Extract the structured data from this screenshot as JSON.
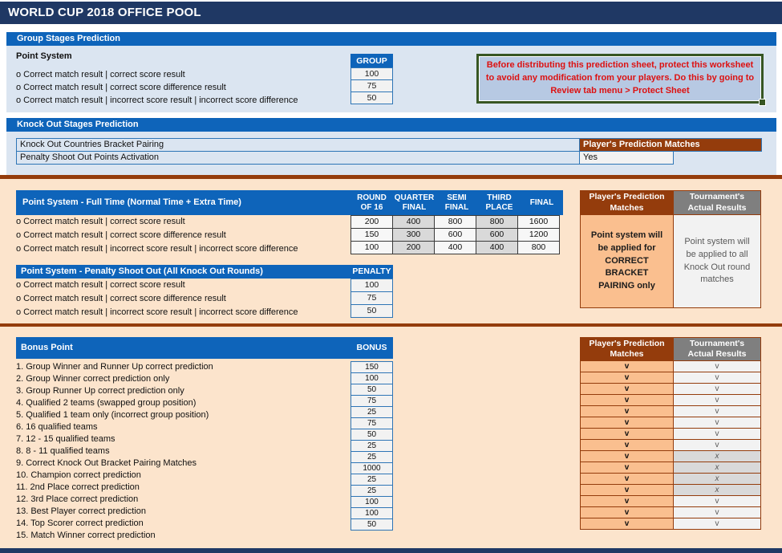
{
  "title": "WORLD CUP 2018 OFFICE POOL",
  "colors": {
    "navy": "#1F3864",
    "blue": "#0E64BA",
    "light_blue_bg": "#DBE5F1",
    "blue_border": "#2E75B6",
    "peach_bg": "#FCE4CC",
    "orange_cell": "#FABF8F",
    "brown": "#943C0C",
    "gray_header": "#7F7F7F",
    "cell_light": "#F2F2F2",
    "cell_gray": "#D9D9D9",
    "green_border": "#375623",
    "warning_bg": "#B7C9E3",
    "warning_red": "#DD1111",
    "gray_text": "#595959",
    "dark_border": "#3A3A3A"
  },
  "group_stages": {
    "bar_label": "Group Stages Prediction",
    "heading": "Point System",
    "column_header": "GROUP",
    "rows": [
      {
        "label": "o Correct match result | correct score result",
        "value": "100"
      },
      {
        "label": "o Correct match result | correct score difference result",
        "value": "75"
      },
      {
        "label": "o Correct match result | incorrect score result | incorrect score difference",
        "value": "50"
      }
    ],
    "warning": "Before distributing this prediction sheet, protect this worksheet to avoid any modification from your players. Do this by going to Review tab menu > Protect Sheet"
  },
  "knockout_stages": {
    "bar_label": "Knock Out Stages Prediction",
    "settings": [
      {
        "label": "Knock Out Countries Bracket Pairing",
        "value": "Player's Prediction Matches",
        "style": "brown"
      },
      {
        "label": "Penalty Shoot Out Points Activation",
        "value": "Yes",
        "style": "input"
      }
    ],
    "full_time": {
      "title": "Point System - Full Time (Normal Time + Extra Time)",
      "columns": [
        "ROUND\nOF 16",
        "QUARTER\nFINAL",
        "SEMI\nFINAL",
        "THIRD\nPLACE",
        "FINAL"
      ],
      "rows": [
        {
          "label": "o Correct match result | correct score result",
          "values": [
            "200",
            "400",
            "800",
            "800",
            "1600"
          ]
        },
        {
          "label": "o Correct match result | correct score difference result",
          "values": [
            "150",
            "300",
            "600",
            "600",
            "1200"
          ]
        },
        {
          "label": "o Correct match result | incorrect score result | incorrect score difference",
          "values": [
            "100",
            "200",
            "400",
            "400",
            "800"
          ]
        }
      ]
    },
    "penalty": {
      "title": "Point System - Penalty Shoot Out (All Knock Out Rounds)",
      "column_header": "PENALTY",
      "rows": [
        {
          "label": "o Correct match result | correct score result",
          "value": "100"
        },
        {
          "label": "o Correct match result | correct score difference result",
          "value": "75"
        },
        {
          "label": "o Correct match result | incorrect score result | incorrect score difference",
          "value": "50"
        }
      ]
    },
    "panel": {
      "player_note": "Point system will be applied for CORRECT BRACKET PAIRING only",
      "tournament_note": "Point system will be applied to all Knock Out round matches"
    }
  },
  "panel_headers": {
    "player": "Player's Prediction Matches",
    "tournament": "Tournament's Actual Results"
  },
  "bonus": {
    "title": "Bonus Point",
    "column_header": "BONUS",
    "rows": [
      {
        "label": "1. Group Winner and Runner Up correct prediction",
        "value": "150",
        "player": "v",
        "tournament": "v"
      },
      {
        "label": "2. Group Winner correct prediction only",
        "value": "100",
        "player": "v",
        "tournament": "v"
      },
      {
        "label": "3. Group Runner Up correct prediction only",
        "value": "50",
        "player": "v",
        "tournament": "v"
      },
      {
        "label": "4. Qualified 2 teams (swapped group position)",
        "value": "75",
        "player": "v",
        "tournament": "v"
      },
      {
        "label": "5. Qualified 1 team only (incorrect group position)",
        "value": "25",
        "player": "v",
        "tournament": "v"
      },
      {
        "label": "6. 16 qualified teams",
        "value": "75",
        "player": "v",
        "tournament": "v"
      },
      {
        "label": "7. 12 - 15 qualified teams",
        "value": "50",
        "player": "v",
        "tournament": "v"
      },
      {
        "label": "8. 8 - 11 qualified teams",
        "value": "25",
        "player": "v",
        "tournament": "v"
      },
      {
        "label": "9. Correct Knock Out Bracket Pairing Matches",
        "value": "25",
        "player": "v",
        "tournament": "x"
      },
      {
        "label": "10. Champion correct prediction",
        "value": "1000",
        "player": "v",
        "tournament": "x"
      },
      {
        "label": "11. 2nd Place correct prediction",
        "value": "25",
        "player": "v",
        "tournament": "x"
      },
      {
        "label": "12. 3rd Place correct prediction",
        "value": "25",
        "player": "v",
        "tournament": "x"
      },
      {
        "label": "13. Best Player correct prediction",
        "value": "100",
        "player": "v",
        "tournament": "v"
      },
      {
        "label": "14. Top Scorer correct prediction",
        "value": "100",
        "player": "v",
        "tournament": "v"
      },
      {
        "label": "15. Match Winner correct prediction",
        "value": "50",
        "player": "v",
        "tournament": "v"
      }
    ]
  }
}
